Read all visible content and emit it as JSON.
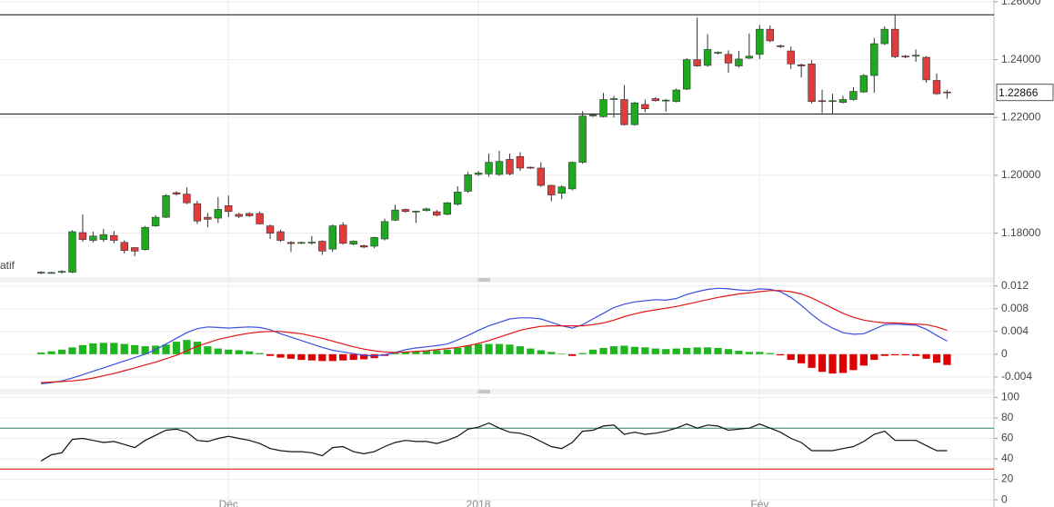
{
  "chart_data": [
    {
      "type": "candlestick",
      "label": "atif",
      "xlim": [
        -3.94,
        91.5
      ],
      "ylim": [
        1.1648,
        1.2606
      ],
      "yticks": [
        {
          "value": 1.18,
          "label": "1.18000"
        },
        {
          "value": 1.2,
          "label": "1.20000"
        },
        {
          "value": 1.22,
          "label": "1.22000"
        },
        {
          "value": 1.24,
          "label": "1.24000"
        },
        {
          "value": 1.26,
          "label": "1.26000"
        }
      ],
      "xticks": [
        {
          "value": 18,
          "label": "Déc"
        },
        {
          "value": 42,
          "label": "2018"
        },
        {
          "value": 69,
          "label": "Fév"
        }
      ],
      "grid": true,
      "up_color": "#21a821",
      "down_color": "#e23b3b",
      "hlines": [
        1.2555,
        1.2212
      ],
      "last_price": 1.22866,
      "open": [
        1.1662,
        1.1663,
        1.1665,
        1.1665,
        1.1802,
        1.1775,
        1.1778,
        1.1792,
        1.1768,
        1.175,
        1.1743,
        1.1825,
        1.1855,
        1.194,
        1.1935,
        1.1902,
        1.1855,
        1.1852,
        1.1895,
        1.1865,
        1.1868,
        1.1868,
        1.1825,
        1.1805,
        1.1768,
        1.1766,
        1.1767,
        1.1772,
        1.1745,
        1.1828,
        1.1762,
        1.1757,
        1.1755,
        1.178,
        1.1845,
        1.1882,
        1.1875,
        1.1878,
        1.1874,
        1.1865,
        1.19,
        1.1945,
        1.2003,
        1.2005,
        1.2003,
        1.2055,
        1.2065,
        1.2028,
        1.2025,
        1.1965,
        1.1938,
        1.1953,
        1.2045,
        1.2205,
        1.2203,
        1.2262,
        1.2262,
        1.2175,
        1.2245,
        1.2265,
        1.2258,
        1.2255,
        1.2298,
        1.24,
        1.238,
        1.2422,
        1.2418,
        1.2378,
        1.2405,
        1.2418,
        1.2505,
        1.2448,
        1.243,
        1.2382,
        1.2385,
        1.2258,
        1.2255,
        1.2252,
        1.2262,
        1.2288,
        1.2345,
        1.2455,
        1.2505,
        1.2412,
        1.2412,
        1.2408,
        1.2328,
        1.2288
      ],
      "high": [
        1.1668,
        1.1666,
        1.1672,
        1.181,
        1.1865,
        1.1805,
        1.1815,
        1.1808,
        1.1775,
        1.1752,
        1.1825,
        1.1862,
        1.1935,
        1.1945,
        1.1958,
        1.1912,
        1.187,
        1.1925,
        1.193,
        1.187,
        1.1872,
        1.1875,
        1.183,
        1.1812,
        1.1772,
        1.177,
        1.179,
        1.1775,
        1.183,
        1.1838,
        1.1775,
        1.176,
        1.1788,
        1.185,
        1.1898,
        1.1885,
        1.1878,
        1.1888,
        1.188,
        1.1908,
        1.1962,
        1.2012,
        1.2015,
        1.2075,
        1.2085,
        1.2075,
        1.208,
        1.203,
        1.2045,
        1.1968,
        1.1965,
        1.2048,
        1.2222,
        1.2212,
        1.2285,
        1.2275,
        1.2312,
        1.2255,
        1.2262,
        1.227,
        1.2264,
        1.23,
        1.2405,
        1.2545,
        1.2488,
        1.2428,
        1.2432,
        1.243,
        1.249,
        1.252,
        1.2518,
        1.2452,
        1.2445,
        1.2386,
        1.2398,
        1.2295,
        1.2282,
        1.2275,
        1.2305,
        1.235,
        1.2475,
        1.2515,
        1.2555,
        1.2416,
        1.2435,
        1.2412,
        1.2352,
        1.2295
      ],
      "low": [
        1.1658,
        1.166,
        1.166,
        1.1662,
        1.177,
        1.1768,
        1.177,
        1.1765,
        1.173,
        1.172,
        1.174,
        1.1822,
        1.1852,
        1.193,
        1.19,
        1.1832,
        1.182,
        1.1835,
        1.1855,
        1.1852,
        1.1856,
        1.183,
        1.178,
        1.177,
        1.1735,
        1.1762,
        1.176,
        1.1725,
        1.1735,
        1.176,
        1.1758,
        1.1748,
        1.1748,
        1.1775,
        1.1842,
        1.187,
        1.1835,
        1.1875,
        1.1858,
        1.1862,
        1.1895,
        1.194,
        1.1998,
        1.1995,
        1.1998,
        1.2,
        1.2015,
        1.2022,
        1.196,
        1.191,
        1.1918,
        1.1948,
        1.204,
        1.2202,
        1.22,
        1.22,
        1.2172,
        1.2172,
        1.2218,
        1.2255,
        1.222,
        1.2252,
        1.2295,
        1.2375,
        1.2375,
        1.2418,
        1.2355,
        1.2372,
        1.2402,
        1.2402,
        1.246,
        1.244,
        1.2368,
        1.2338,
        1.2248,
        1.2215,
        1.221,
        1.2248,
        1.2258,
        1.2285,
        1.2285,
        1.245,
        1.2405,
        1.2405,
        1.2392,
        1.232,
        1.2278,
        1.2265
      ],
      "close": [
        1.1665,
        1.1664,
        1.1668,
        1.1805,
        1.1778,
        1.179,
        1.1795,
        1.1775,
        1.174,
        1.1738,
        1.182,
        1.1855,
        1.193,
        1.1935,
        1.1905,
        1.1842,
        1.1848,
        1.1882,
        1.1875,
        1.1858,
        1.186,
        1.1832,
        1.18,
        1.1775,
        1.1764,
        1.1768,
        1.1769,
        1.1738,
        1.1825,
        1.1765,
        1.1772,
        1.1752,
        1.1785,
        1.184,
        1.188,
        1.1875,
        1.1876,
        1.1884,
        1.1862,
        1.1905,
        1.1942,
        1.2002,
        1.2008,
        1.2045,
        1.2048,
        1.2005,
        1.2025,
        1.2026,
        1.1965,
        1.1932,
        1.196,
        1.2045,
        1.2205,
        1.2208,
        1.2262,
        1.2265,
        1.2175,
        1.225,
        1.223,
        1.2258,
        1.226,
        1.2295,
        1.24,
        1.2378,
        1.2435,
        1.2425,
        1.2388,
        1.2402,
        1.2412,
        1.2505,
        1.2465,
        1.2445,
        1.2385,
        1.2378,
        1.2255,
        1.2255,
        1.2258,
        1.2262,
        1.229,
        1.2345,
        1.2455,
        1.2505,
        1.241,
        1.241,
        1.2415,
        1.233,
        1.2282,
        1.2286
      ]
    },
    {
      "type": "macd",
      "xlim": [
        -3.94,
        91.5
      ],
      "ylim": [
        -0.0061,
        0.0126
      ],
      "yticks": [
        -0.004,
        0,
        0.004,
        0.008,
        0.012
      ],
      "grid": true,
      "histogram": {
        "up_color": "#1fb51f",
        "down_color": "#dd0000",
        "values": [
          0.0003,
          0.0005,
          0.0008,
          0.0012,
          0.0016,
          0.0019,
          0.002,
          0.002,
          0.0018,
          0.0016,
          0.0014,
          0.0015,
          0.0017,
          0.0022,
          0.0025,
          0.0022,
          0.0014,
          0.001,
          0.0008,
          0.0007,
          0.0005,
          0.0002,
          -0.0003,
          -0.0006,
          -0.0008,
          -0.001,
          -0.0011,
          -0.0012,
          -0.0012,
          -0.0011,
          -0.001,
          -0.0009,
          -0.0007,
          -0.0003,
          0.0002,
          0.0004,
          0.0005,
          0.0006,
          0.0007,
          0.0008,
          0.0011,
          0.0015,
          0.0018,
          0.0018,
          0.0018,
          0.0017,
          0.0014,
          0.001,
          0.0007,
          0.0004,
          0.0001,
          -0.0003,
          0.0002,
          0.0008,
          0.0011,
          0.0014,
          0.0015,
          0.0013,
          0.0012,
          0.001,
          0.0009,
          0.001,
          0.0011,
          0.0012,
          0.0012,
          0.0011,
          0.0009,
          0.0006,
          0.0004,
          0.0004,
          0.0002,
          -0.0002,
          -0.001,
          -0.0016,
          -0.0024,
          -0.0031,
          -0.0034,
          -0.0033,
          -0.0028,
          -0.002,
          -0.001,
          -0.0003,
          -0.0002,
          -0.0002,
          -0.0003,
          -0.0008,
          -0.0015,
          -0.0019
        ]
      },
      "series": [
        {
          "color": "#3b4fe0",
          "values": [
            -0.0052,
            -0.005,
            -0.0047,
            -0.0042,
            -0.0036,
            -0.003,
            -0.0024,
            -0.0018,
            -0.0012,
            -0.0006,
            0,
            0.0008,
            0.0018,
            0.0028,
            0.0038,
            0.0045,
            0.0048,
            0.0047,
            0.0046,
            0.0047,
            0.0048,
            0.0047,
            0.0043,
            0.0036,
            0.003,
            0.0024,
            0.0018,
            0.0012,
            0.0007,
            0.0004,
            0.0001,
            -0.0002,
            -0.0003,
            -0.0001,
            0.0003,
            0.0008,
            0.0011,
            0.0013,
            0.0015,
            0.0018,
            0.0025,
            0.0033,
            0.0042,
            0.005,
            0.0056,
            0.0062,
            0.0064,
            0.0064,
            0.0062,
            0.0056,
            0.005,
            0.0046,
            0.0052,
            0.0062,
            0.0072,
            0.0082,
            0.0088,
            0.0092,
            0.0094,
            0.0096,
            0.0095,
            0.0098,
            0.0105,
            0.011,
            0.0114,
            0.0116,
            0.0115,
            0.0113,
            0.0112,
            0.0115,
            0.0114,
            0.011,
            0.01,
            0.0086,
            0.007,
            0.0056,
            0.0046,
            0.0038,
            0.0035,
            0.0036,
            0.0044,
            0.0052,
            0.0053,
            0.0052,
            0.0051,
            0.0044,
            0.0033,
            0.0023
          ]
        },
        {
          "color": "#e01515",
          "values": [
            -0.005,
            -0.0049,
            -0.0048,
            -0.0047,
            -0.0045,
            -0.0042,
            -0.0038,
            -0.0034,
            -0.0029,
            -0.0024,
            -0.0019,
            -0.0014,
            -0.0008,
            -0.0002,
            0.0006,
            0.0014,
            0.002,
            0.0026,
            0.003,
            0.0034,
            0.0037,
            0.0039,
            0.004,
            0.004,
            0.0038,
            0.0036,
            0.0032,
            0.0028,
            0.0023,
            0.0018,
            0.0013,
            0.0009,
            0.0006,
            0.0004,
            0.0003,
            0.0004,
            0.0005,
            0.0006,
            0.0008,
            0.001,
            0.0012,
            0.0015,
            0.0019,
            0.0024,
            0.003,
            0.0036,
            0.0042,
            0.0046,
            0.0049,
            0.005,
            0.005,
            0.005,
            0.005,
            0.0052,
            0.0055,
            0.006,
            0.0066,
            0.0071,
            0.0075,
            0.0078,
            0.0081,
            0.0084,
            0.0088,
            0.0092,
            0.0096,
            0.01,
            0.0103,
            0.0106,
            0.0108,
            0.011,
            0.0112,
            0.0112,
            0.011,
            0.0106,
            0.0099,
            0.009,
            0.0081,
            0.0072,
            0.0065,
            0.006,
            0.0057,
            0.0055,
            0.0055,
            0.0054,
            0.0053,
            0.0052,
            0.0048,
            0.0042
          ]
        }
      ]
    },
    {
      "type": "line",
      "xlim": [
        -3.94,
        91.5
      ],
      "ylim": [
        -7,
        103
      ],
      "yticks": [
        0,
        20,
        40,
        60,
        80,
        100
      ],
      "grid": true,
      "levels": [
        {
          "value": 70,
          "color": "#2f7d70"
        },
        {
          "value": 30,
          "color": "#e00000"
        }
      ],
      "series": [
        {
          "color": "#111111",
          "values": [
            38,
            44,
            46,
            59,
            60,
            58,
            56,
            57,
            54,
            51,
            58,
            63,
            68,
            69,
            66,
            58,
            57,
            60,
            62,
            60,
            58,
            55,
            50,
            48,
            47,
            47,
            46,
            43,
            51,
            52,
            47,
            45,
            47,
            52,
            56,
            58,
            57,
            57,
            55,
            58,
            62,
            69,
            71,
            75,
            70,
            66,
            65,
            62,
            57,
            52,
            50,
            56,
            67,
            68,
            72,
            73,
            64,
            66,
            64,
            65,
            67,
            70,
            74,
            70,
            73,
            72,
            68,
            69,
            70,
            74,
            70,
            66,
            60,
            56,
            48,
            48,
            48,
            50,
            52,
            57,
            64,
            67,
            58,
            58,
            58,
            53,
            48,
            48
          ]
        }
      ]
    }
  ]
}
